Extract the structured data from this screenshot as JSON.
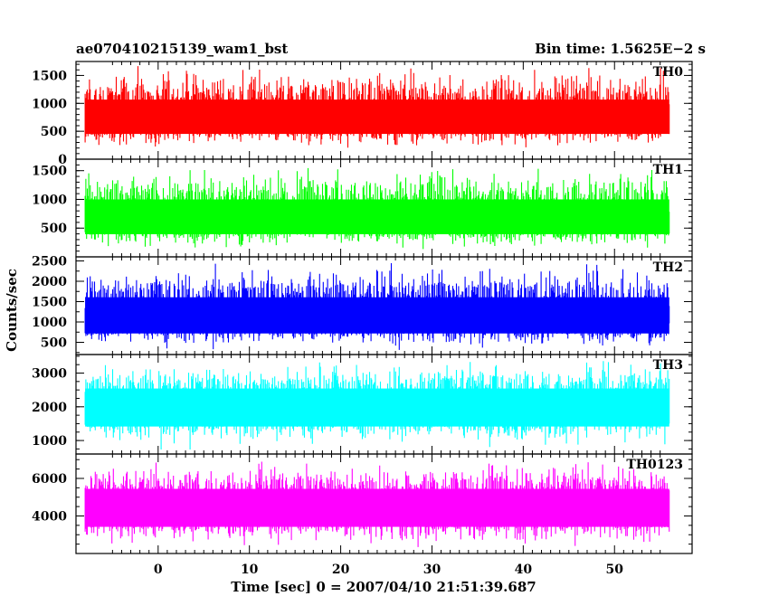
{
  "header": {
    "title": "ae070410215139_wam1_bst",
    "bin_time": "Bin time: 1.5625E−2 s"
  },
  "chart_data": {
    "type": "line",
    "xlabel": "Time [sec] 0 = 2007/04/10 21:51:39.687",
    "ylabel": "Counts/sec",
    "xlim": [
      -9,
      58.5
    ],
    "x_ticks": [
      "0",
      "10",
      "20",
      "30",
      "40",
      "50"
    ],
    "x_range_data": [
      -8,
      56
    ],
    "grid": false,
    "panels": [
      {
        "name": "TH0",
        "color": "#ff0000",
        "ylim": [
          0,
          1750
        ],
        "ticks": [
          "0",
          "500",
          "1000",
          "1500"
        ],
        "tick_values": [
          0,
          500,
          1000,
          1500
        ],
        "typical_mean": 700,
        "typical_range": [
          150,
          1750
        ]
      },
      {
        "name": "TH1",
        "color": "#00ff00",
        "ylim": [
          0,
          1700
        ],
        "ticks": [
          "500",
          "1000",
          "1500"
        ],
        "tick_values": [
          500,
          1000,
          1500
        ],
        "typical_mean": 650,
        "typical_range": [
          80,
          1650
        ]
      },
      {
        "name": "TH2",
        "color": "#0000ff",
        "ylim": [
          200,
          2600
        ],
        "ticks": [
          "2500",
          "2000",
          "1500",
          "1000",
          "500"
        ],
        "tick_values": [
          2500,
          2000,
          1500,
          1000,
          500
        ],
        "typical_mean": 1100,
        "typical_range": [
          250,
          2550
        ]
      },
      {
        "name": "TH3",
        "color": "#00ffff",
        "ylim": [
          600,
          3550
        ],
        "ticks": [
          "3000",
          "2000",
          "1000"
        ],
        "tick_values": [
          3000,
          2000,
          1000
        ],
        "typical_mean": 2000,
        "typical_range": [
          700,
          3550
        ]
      },
      {
        "name": "TH0123",
        "color": "#ff00ff",
        "ylim": [
          2000,
          7300
        ],
        "ticks": [
          "6000",
          "4000"
        ],
        "tick_values": [
          6000,
          4000
        ],
        "typical_mean": 4500,
        "typical_range": [
          2100,
          7200
        ]
      }
    ]
  }
}
